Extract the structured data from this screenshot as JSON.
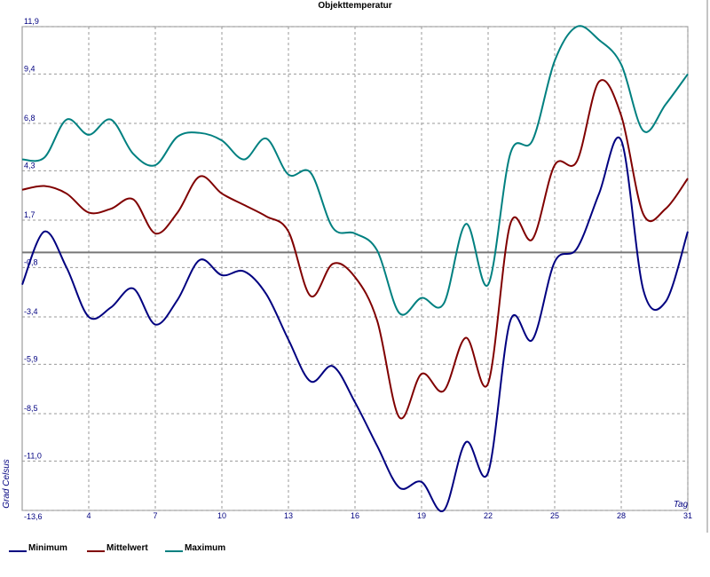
{
  "chart_data": {
    "type": "line",
    "title": "Objekttemperatur",
    "y_label": "Grad Celsus",
    "x_label": "Tag",
    "x": [
      1,
      2,
      3,
      4,
      5,
      6,
      7,
      8,
      9,
      10,
      11,
      12,
      13,
      14,
      15,
      16,
      17,
      18,
      19,
      20,
      21,
      22,
      23,
      24,
      25,
      26,
      27,
      28,
      29,
      30,
      31
    ],
    "series": [
      {
        "name": "Minimum",
        "color": "#000080",
        "values": [
          -1.7,
          1.1,
          -0.8,
          -3.4,
          -2.9,
          -1.9,
          -3.8,
          -2.5,
          -0.4,
          -1.2,
          -1.0,
          -2.2,
          -4.6,
          -6.8,
          -6.0,
          -7.9,
          -10.2,
          -12.4,
          -12.1,
          -13.6,
          -10.0,
          -11.6,
          -3.6,
          -4.6,
          -0.5,
          0.2,
          3.1,
          5.9,
          -2.0,
          -2.6,
          1.1
        ]
      },
      {
        "name": "Mittelwert",
        "color": "#800000",
        "values": [
          3.3,
          3.5,
          3.1,
          2.1,
          2.3,
          2.8,
          1.0,
          2.1,
          4.0,
          3.1,
          2.5,
          1.9,
          1.1,
          -2.3,
          -0.6,
          -1.3,
          -3.6,
          -8.7,
          -6.4,
          -7.3,
          -4.5,
          -6.9,
          1.5,
          0.7,
          4.6,
          4.8,
          9.0,
          7.2,
          2.0,
          2.3,
          3.9
        ]
      },
      {
        "name": "Maximum",
        "color": "#008080",
        "values": [
          4.9,
          5.0,
          7.0,
          6.2,
          7.0,
          5.2,
          4.6,
          6.1,
          6.3,
          5.9,
          4.9,
          6.0,
          4.1,
          4.2,
          1.3,
          1.0,
          0.1,
          -3.2,
          -2.4,
          -2.7,
          1.5,
          -1.7,
          5.2,
          5.9,
          10.1,
          11.9,
          11.2,
          9.9,
          6.4,
          7.8,
          9.4
        ]
      }
    ],
    "xlim": [
      1,
      31
    ],
    "xticks": [
      4,
      7,
      10,
      13,
      16,
      19,
      22,
      25,
      28,
      31
    ],
    "ylim": [
      -13.6,
      11.9
    ],
    "yticks": [
      {
        "value": -13.6,
        "label": "-13,6"
      },
      {
        "value": -11.0,
        "label": "-11,0"
      },
      {
        "value": -8.5,
        "label": "-8,5"
      },
      {
        "value": -5.9,
        "label": "-5,9"
      },
      {
        "value": -3.4,
        "label": "-3,4"
      },
      {
        "value": -0.8,
        "label": "-0,8"
      },
      {
        "value": 1.7,
        "label": "1,7"
      },
      {
        "value": 4.3,
        "label": "4,3"
      },
      {
        "value": 6.8,
        "label": "6,8"
      },
      {
        "value": 9.4,
        "label": "9,4"
      },
      {
        "value": 11.9,
        "label": "11,9"
      }
    ],
    "grid": true
  }
}
